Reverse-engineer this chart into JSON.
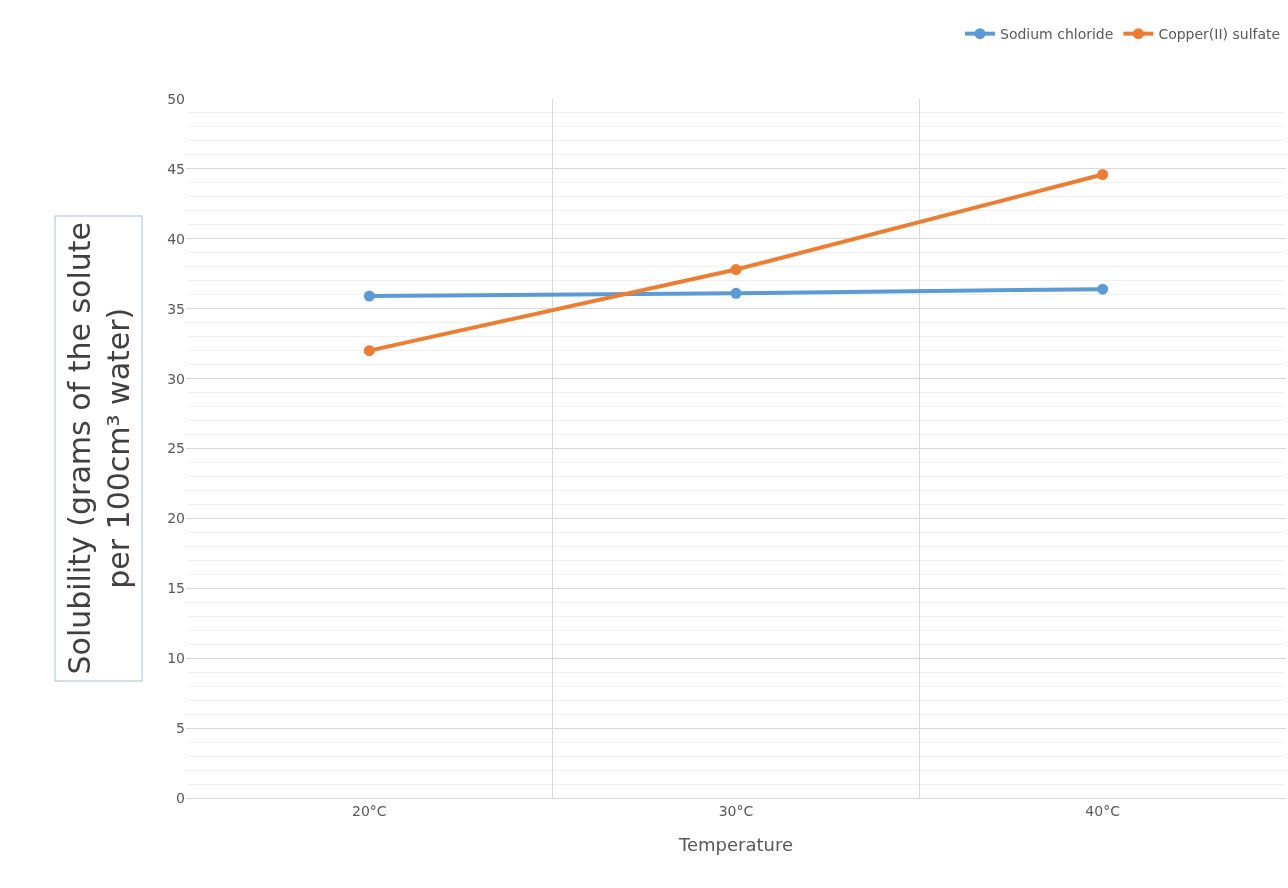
{
  "chart_data": {
    "type": "line",
    "xlabel": "Temperature",
    "ylabel": "Solubility (grams of the solute per 100cm³ water)",
    "categories": [
      "20°C",
      "30°C",
      "40°C"
    ],
    "series": [
      {
        "name": "Sodium chloride",
        "color": "#5b9bd5",
        "values": [
          35.9,
          36.1,
          36.4
        ]
      },
      {
        "name": "Copper(II) sulfate",
        "color": "#ed7d31",
        "values": [
          32,
          37.8,
          44.6
        ]
      }
    ],
    "ylim": [
      0,
      50
    ],
    "yticks": [
      0,
      5,
      10,
      15,
      20,
      25,
      30,
      35,
      40,
      45,
      50
    ],
    "grid": true,
    "legend": "top right",
    "marker": "circle",
    "line_style": "solid"
  }
}
